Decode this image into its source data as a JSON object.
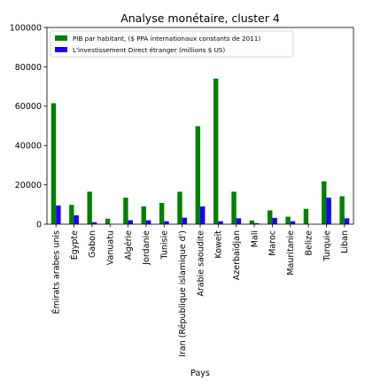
{
  "chart_data": {
    "type": "bar",
    "title": "Analyse monétaire, cluster 4",
    "xlabel": "Pays",
    "ylabel": "",
    "ylim": [
      0,
      100000
    ],
    "yticks": [
      0,
      20000,
      40000,
      60000,
      80000,
      100000
    ],
    "grid": false,
    "legend_position": "top-left",
    "categories": [
      "Émirats arabes unis",
      "Égypte",
      "Gabon",
      "Vanuatu",
      "Algérie",
      "Jordanie",
      "Tunisie",
      "Iran (République islamique d')",
      "Arabie saoudite",
      "Koweït",
      "Azerbaïdjan",
      "Mali",
      "Maroc",
      "Mauritanie",
      "Belize",
      "Turquie",
      "Liban"
    ],
    "series": [
      {
        "name": "PIB par habitant, ($ PPA internationaux constants de 2011)",
        "color": "#008000",
        "values": [
          61500,
          9800,
          16500,
          2800,
          13500,
          9000,
          10800,
          16500,
          49800,
          74000,
          16500,
          1900,
          7000,
          3800,
          7800,
          21800,
          14200
        ]
      },
      {
        "name": "L'investissement Direct étranger (millions $ US)",
        "color": "#1a00ff",
        "values": [
          9500,
          4500,
          1000,
          0,
          2000,
          2000,
          1500,
          3300,
          9000,
          1500,
          3000,
          500,
          3200,
          1500,
          0,
          13500,
          3000
        ]
      }
    ]
  }
}
